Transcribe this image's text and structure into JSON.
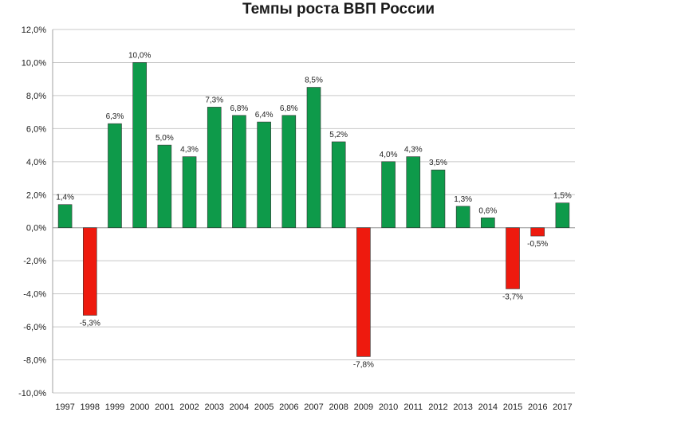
{
  "chart_data": {
    "type": "bar",
    "title": "Темпы роста ВВП России",
    "xlabel": "",
    "ylabel": "",
    "categories": [
      "1997",
      "1998",
      "1999",
      "2000",
      "2001",
      "2002",
      "2003",
      "2004",
      "2005",
      "2006",
      "2007",
      "2008",
      "2009",
      "2010",
      "2011",
      "2012",
      "2013",
      "2014",
      "2015",
      "2016",
      "2017"
    ],
    "values": [
      1.4,
      -5.3,
      6.3,
      10.0,
      5.0,
      4.3,
      7.3,
      6.8,
      6.4,
      6.8,
      8.5,
      5.2,
      -7.8,
      4.0,
      4.3,
      3.5,
      1.3,
      0.6,
      -3.7,
      -0.5,
      1.5
    ],
    "data_labels": [
      "1,4%",
      "-5,3%",
      "6,3%",
      "10,0%",
      "5,0%",
      "4,3%",
      "7,3%",
      "6,8%",
      "6,4%",
      "6,8%",
      "8,5%",
      "5,2%",
      "-7,8%",
      "4,0%",
      "4,3%",
      "3,5%",
      "1,3%",
      "0,6%",
      "-3,7%",
      "-0,5%",
      "1,5%"
    ],
    "ylim": [
      -10,
      12
    ],
    "y_ticks": [
      12,
      10,
      8,
      6,
      4,
      2,
      0,
      -2,
      -4,
      -6,
      -8,
      -10
    ],
    "y_tick_labels": [
      "12,0%",
      "10,0%",
      "8,0%",
      "6,0%",
      "4,0%",
      "2,0%",
      "0,0%",
      "-2,0%",
      "-4,0%",
      "-6,0%",
      "-8,0%",
      "-10,0%"
    ],
    "grid": true,
    "legend": "none",
    "colors": {
      "positive": "#0e9a4a",
      "negative": "#ee1a0e",
      "grid": "#c8c8c8",
      "axis": "#a0a0a0"
    }
  }
}
